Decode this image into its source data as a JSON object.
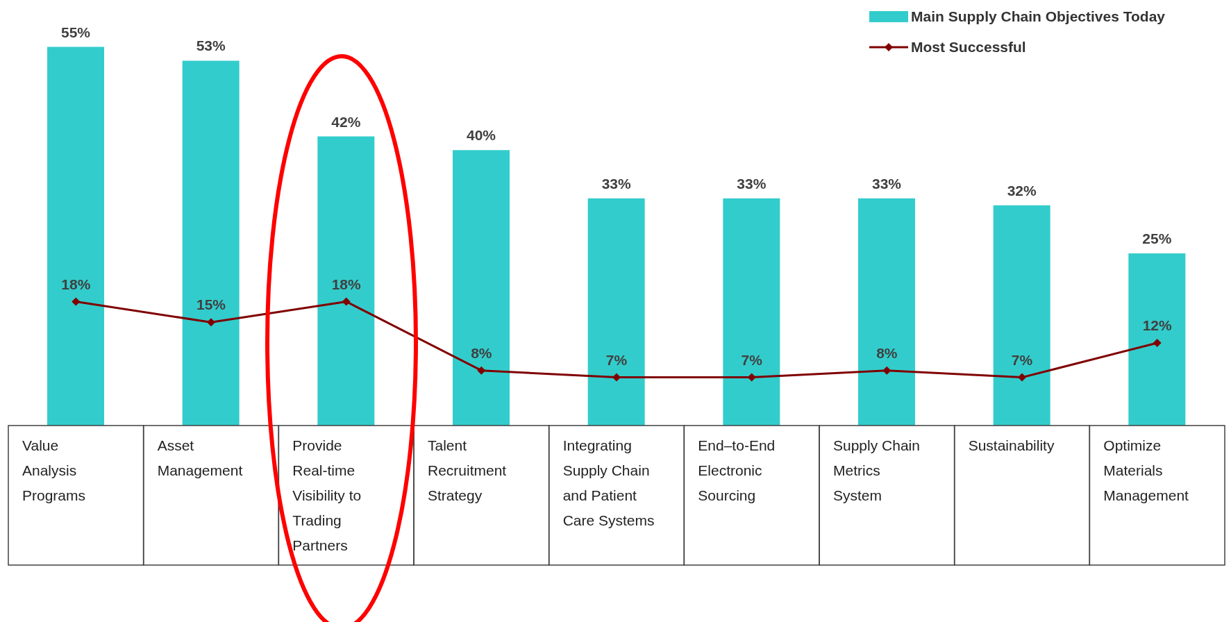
{
  "chart_data": {
    "type": "bar",
    "categories": [
      "Value Analysis Programs",
      "Asset Management",
      "Provide Real-time Visibility to Trading Partners",
      "Talent Recruitment Strategy",
      "Integrating Supply Chain and Patient Care Systems",
      "End–to-End Electronic Sourcing",
      "Supply Chain Metrics System",
      "Sustainability",
      "Optimize Materials Management"
    ],
    "series": [
      {
        "name": "Main Supply Chain Objectives Today",
        "color": "#33cccc",
        "values": [
          55,
          53,
          42,
          40,
          33,
          33,
          33,
          32,
          25
        ],
        "value_labels": [
          "55%",
          "53%",
          "42%",
          "40%",
          "33%",
          "33%",
          "33%",
          "32%",
          "25%"
        ]
      },
      {
        "name": "Most Successful",
        "type": "line",
        "color": "#800000",
        "values": [
          18,
          15,
          18,
          8,
          7,
          7,
          8,
          7,
          12
        ],
        "value_labels": [
          "18%",
          "15%",
          "18%",
          "8%",
          "7%",
          "7%",
          "8%",
          "7%",
          "12%"
        ]
      }
    ],
    "legend": "top right",
    "marker": "diamond"
  }
}
